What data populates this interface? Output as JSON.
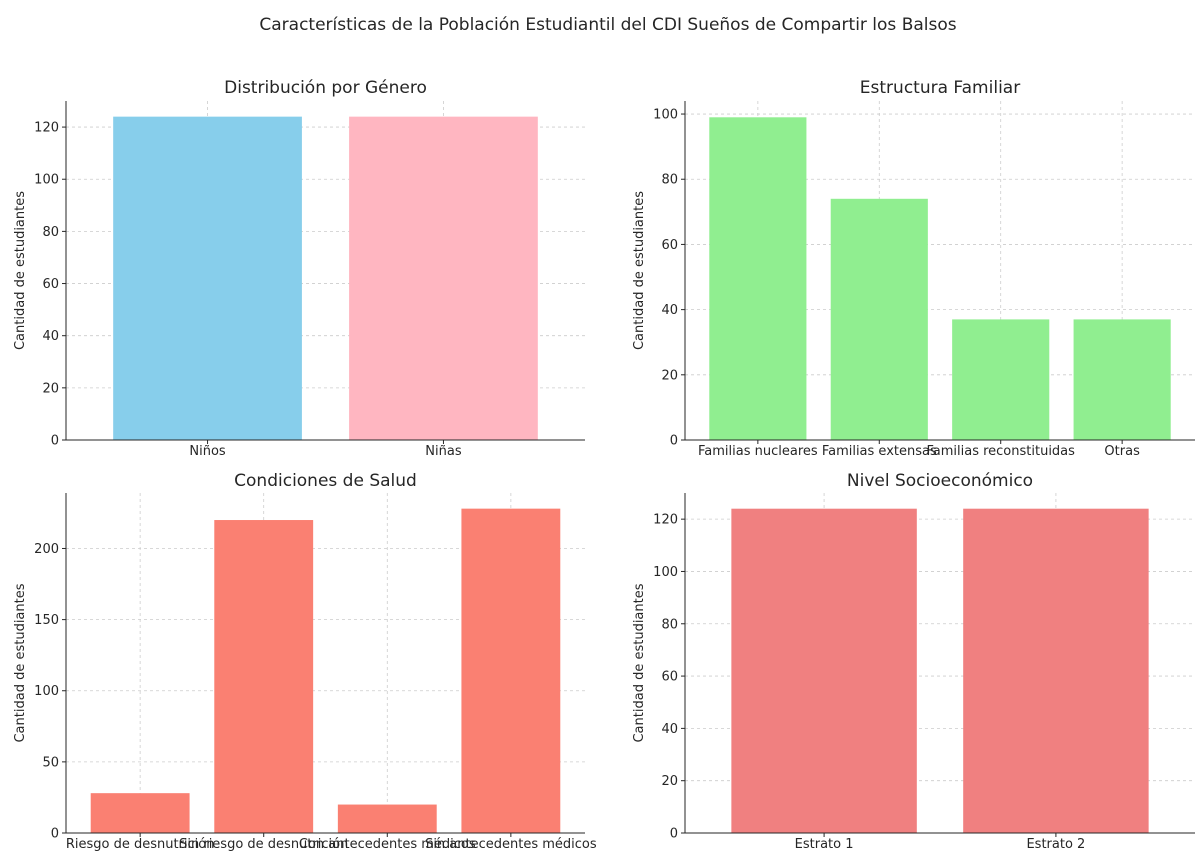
{
  "suptitle": "Características de la Población Estudiantil del CDI Sueños de Compartir los Balsos",
  "chart_data": [
    {
      "type": "bar",
      "title": "Distribución por Género",
      "ylabel": "Cantidad de estudiantes",
      "categories": [
        "Niños",
        "Niñas"
      ],
      "values": [
        124,
        124
      ],
      "colors": [
        "#87ceeb",
        "#ffb6c1"
      ],
      "ylim": [
        0,
        130
      ],
      "yticks": [
        0,
        20,
        40,
        60,
        80,
        100,
        120
      ],
      "grid": true
    },
    {
      "type": "bar",
      "title": "Estructura Familiar",
      "ylabel": "Cantidad de estudiantes",
      "categories": [
        "Familias nucleares",
        "Familias extensas",
        "Familias reconstituidas",
        "Otras"
      ],
      "values": [
        99,
        74,
        37,
        37
      ],
      "colors": [
        "#90ee90",
        "#90ee90",
        "#90ee90",
        "#90ee90"
      ],
      "ylim": [
        0,
        104
      ],
      "yticks": [
        0,
        20,
        40,
        60,
        80,
        100
      ],
      "grid": true
    },
    {
      "type": "bar",
      "title": "Condiciones de Salud",
      "ylabel": "Cantidad de estudiantes",
      "categories": [
        "Riesgo de desnutrición",
        "Sin riesgo de desnutrición",
        "Con antecedentes médicos",
        "Sin antecedentes médicos"
      ],
      "values": [
        28,
        220,
        20,
        228
      ],
      "colors": [
        "#fa8072",
        "#fa8072",
        "#fa8072",
        "#fa8072"
      ],
      "ylim": [
        0,
        239
      ],
      "yticks": [
        0,
        50,
        100,
        150,
        200
      ],
      "grid": true
    },
    {
      "type": "bar",
      "title": "Nivel Socioeconómico",
      "ylabel": "Cantidad de estudiantes",
      "categories": [
        "Estrato 1",
        "Estrato 2"
      ],
      "values": [
        124,
        124
      ],
      "colors": [
        "#f08080",
        "#f08080"
      ],
      "ylim": [
        0,
        130
      ],
      "yticks": [
        0,
        20,
        40,
        60,
        80,
        100,
        120
      ],
      "grid": true
    }
  ]
}
